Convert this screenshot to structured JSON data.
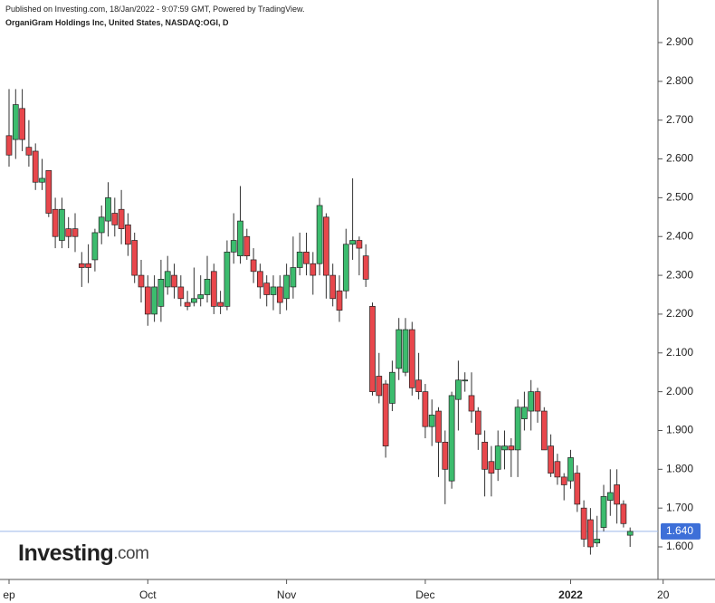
{
  "chart_data": {
    "type": "candlestick",
    "published": "Published on Investing.com, 18/Jan/2022 - 9:07:59 GMT, Powered by TradingView.",
    "title": "OrganiGram Holdings Inc, United States, NASDAQ:OGI, D",
    "watermark": [
      "Investing",
      ".com"
    ],
    "categories": [
      "ep",
      null,
      null,
      null,
      null,
      null,
      null,
      null,
      null,
      null,
      null,
      null,
      null,
      null,
      null,
      null,
      null,
      null,
      null,
      null,
      null,
      "Oct",
      null,
      null,
      null,
      null,
      null,
      null,
      null,
      null,
      null,
      null,
      null,
      null,
      null,
      null,
      null,
      null,
      null,
      null,
      null,
      null,
      "Nov",
      null,
      null,
      null,
      null,
      null,
      null,
      null,
      null,
      null,
      null,
      null,
      null,
      null,
      null,
      null,
      null,
      null,
      null,
      null,
      null,
      "Dec",
      null,
      null,
      null,
      null,
      null,
      null,
      null,
      null,
      null,
      null,
      null,
      null,
      null,
      null,
      null,
      null,
      null,
      null,
      null,
      null,
      null,
      "2022",
      null,
      null,
      null,
      null,
      null,
      null,
      null,
      null,
      null,
      null,
      null,
      null,
      null,
      "20"
    ],
    "open": [
      2.66,
      2.65,
      2.73,
      2.63,
      2.62,
      2.54,
      2.57,
      2.47,
      2.39,
      2.42,
      2.42,
      2.33,
      2.33,
      2.34,
      2.41,
      2.44,
      2.46,
      2.47,
      2.43,
      2.39,
      2.3,
      2.27,
      2.2,
      2.22,
      2.27,
      2.3,
      2.27,
      2.23,
      2.23,
      2.24,
      2.25,
      2.31,
      2.23,
      2.22,
      2.36,
      2.35,
      2.4,
      2.34,
      2.31,
      2.28,
      2.25,
      2.27,
      2.24,
      2.27,
      2.32,
      2.36,
      2.33,
      2.33,
      2.45,
      2.3,
      2.26,
      2.26,
      2.38,
      2.39,
      2.35,
      2.22,
      2.04,
      2.02,
      1.97,
      2.06,
      2.05,
      2.16,
      2.03,
      2.0,
      1.91,
      1.95,
      1.87,
      1.77,
      1.98,
      2.03,
      1.99,
      1.95,
      1.87,
      1.82,
      1.8,
      1.85,
      1.86,
      1.85,
      1.93,
      1.95,
      2.0,
      1.95,
      1.86,
      1.82,
      1.78,
      1.77,
      1.79,
      1.7,
      1.67,
      1.61,
      1.65,
      1.72,
      1.76,
      1.71,
      1.63,
      null,
      null,
      null,
      null,
      null
    ],
    "high": [
      2.78,
      2.78,
      2.78,
      2.7,
      2.64,
      2.6,
      2.57,
      2.5,
      2.5,
      2.45,
      2.46,
      2.36,
      2.38,
      2.42,
      2.48,
      2.54,
      2.5,
      2.52,
      2.46,
      2.41,
      2.34,
      2.3,
      2.3,
      2.34,
      2.35,
      2.33,
      2.3,
      2.26,
      2.32,
      2.3,
      2.35,
      2.33,
      2.26,
      2.39,
      2.46,
      2.53,
      2.42,
      2.37,
      2.33,
      2.3,
      2.3,
      2.3,
      2.33,
      2.4,
      2.41,
      2.41,
      2.36,
      2.5,
      2.46,
      2.33,
      2.3,
      2.42,
      2.55,
      2.4,
      2.38,
      2.23,
      2.1,
      2.03,
      2.08,
      2.19,
      2.19,
      2.18,
      2.1,
      2.02,
      1.98,
      1.96,
      1.9,
      2.0,
      2.08,
      2.05,
      2.05,
      1.96,
      1.9,
      1.86,
      1.9,
      1.9,
      1.88,
      1.98,
      2.0,
      2.03,
      2.01,
      1.96,
      1.89,
      1.84,
      1.79,
      1.85,
      1.81,
      1.72,
      1.7,
      1.68,
      1.76,
      1.8,
      1.8,
      1.72,
      1.65,
      null,
      null,
      null,
      null,
      null
    ],
    "low": [
      2.58,
      2.6,
      2.62,
      2.58,
      2.52,
      2.52,
      2.45,
      2.37,
      2.37,
      2.37,
      2.36,
      2.27,
      2.28,
      2.31,
      2.38,
      2.4,
      2.4,
      2.38,
      2.35,
      2.28,
      2.23,
      2.17,
      2.18,
      2.18,
      2.25,
      2.24,
      2.22,
      2.21,
      2.22,
      2.22,
      2.23,
      2.2,
      2.2,
      2.21,
      2.33,
      2.33,
      2.34,
      2.28,
      2.24,
      2.22,
      2.21,
      2.2,
      2.21,
      2.24,
      2.3,
      2.3,
      2.25,
      2.3,
      2.24,
      2.22,
      2.18,
      2.24,
      2.34,
      2.3,
      2.27,
      1.99,
      1.97,
      1.83,
      1.95,
      2.03,
      2.04,
      1.99,
      1.98,
      1.88,
      1.86,
      1.78,
      1.71,
      1.75,
      1.9,
      2.0,
      1.92,
      1.85,
      1.73,
      1.73,
      1.77,
      1.8,
      1.78,
      1.78,
      1.9,
      1.9,
      1.92,
      1.85,
      1.78,
      1.76,
      1.72,
      1.75,
      1.69,
      1.6,
      1.58,
      1.6,
      1.64,
      1.68,
      1.66,
      1.65,
      1.6,
      null,
      null,
      null,
      null,
      null
    ],
    "close": [
      2.61,
      2.74,
      2.65,
      2.61,
      2.54,
      2.55,
      2.46,
      2.4,
      2.47,
      2.4,
      2.4,
      2.32,
      2.32,
      2.41,
      2.45,
      2.5,
      2.43,
      2.42,
      2.38,
      2.3,
      2.27,
      2.2,
      2.27,
      2.29,
      2.31,
      2.27,
      2.24,
      2.22,
      2.24,
      2.25,
      2.29,
      2.22,
      2.22,
      2.36,
      2.39,
      2.44,
      2.35,
      2.31,
      2.27,
      2.25,
      2.27,
      2.23,
      2.3,
      2.32,
      2.36,
      2.33,
      2.3,
      2.48,
      2.3,
      2.24,
      2.21,
      2.38,
      2.39,
      2.37,
      2.29,
      2.0,
      1.99,
      1.86,
      2.05,
      2.16,
      2.16,
      2.01,
      2.0,
      1.91,
      1.94,
      1.87,
      1.8,
      1.99,
      2.03,
      2.03,
      1.95,
      1.89,
      1.8,
      1.79,
      1.86,
      1.86,
      1.85,
      1.96,
      1.96,
      2.0,
      1.95,
      1.85,
      1.79,
      1.78,
      1.76,
      1.83,
      1.71,
      1.62,
      1.6,
      1.62,
      1.73,
      1.74,
      1.71,
      1.66,
      1.64,
      null,
      null,
      null,
      null,
      null
    ],
    "up_color": "#3cbc6e",
    "down_color": "#e8474c",
    "last_price": {
      "value": 1.64,
      "label": "1.640"
    },
    "price_line_color": "#9bb7ea",
    "price_label_color": "#3d6fd8",
    "ylim": [
      1.516,
      2.928
    ],
    "yticks": [
      {
        "value": 1.6,
        "label": "1.600"
      },
      {
        "value": 1.7,
        "label": "1.700"
      },
      {
        "value": 1.8,
        "label": "1.800"
      },
      {
        "value": 1.9,
        "label": "1.900"
      },
      {
        "value": 2.0,
        "label": "2.000"
      },
      {
        "value": 2.1,
        "label": "2.100"
      },
      {
        "value": 2.2,
        "label": "2.200"
      },
      {
        "value": 2.3,
        "label": "2.300"
      },
      {
        "value": 2.4,
        "label": "2.400"
      },
      {
        "value": 2.5,
        "label": "2.500"
      },
      {
        "value": 2.6,
        "label": "2.600"
      },
      {
        "value": 2.7,
        "label": "2.700"
      },
      {
        "value": 2.8,
        "label": "2.800"
      },
      {
        "value": 2.9,
        "label": "2.900"
      }
    ]
  }
}
